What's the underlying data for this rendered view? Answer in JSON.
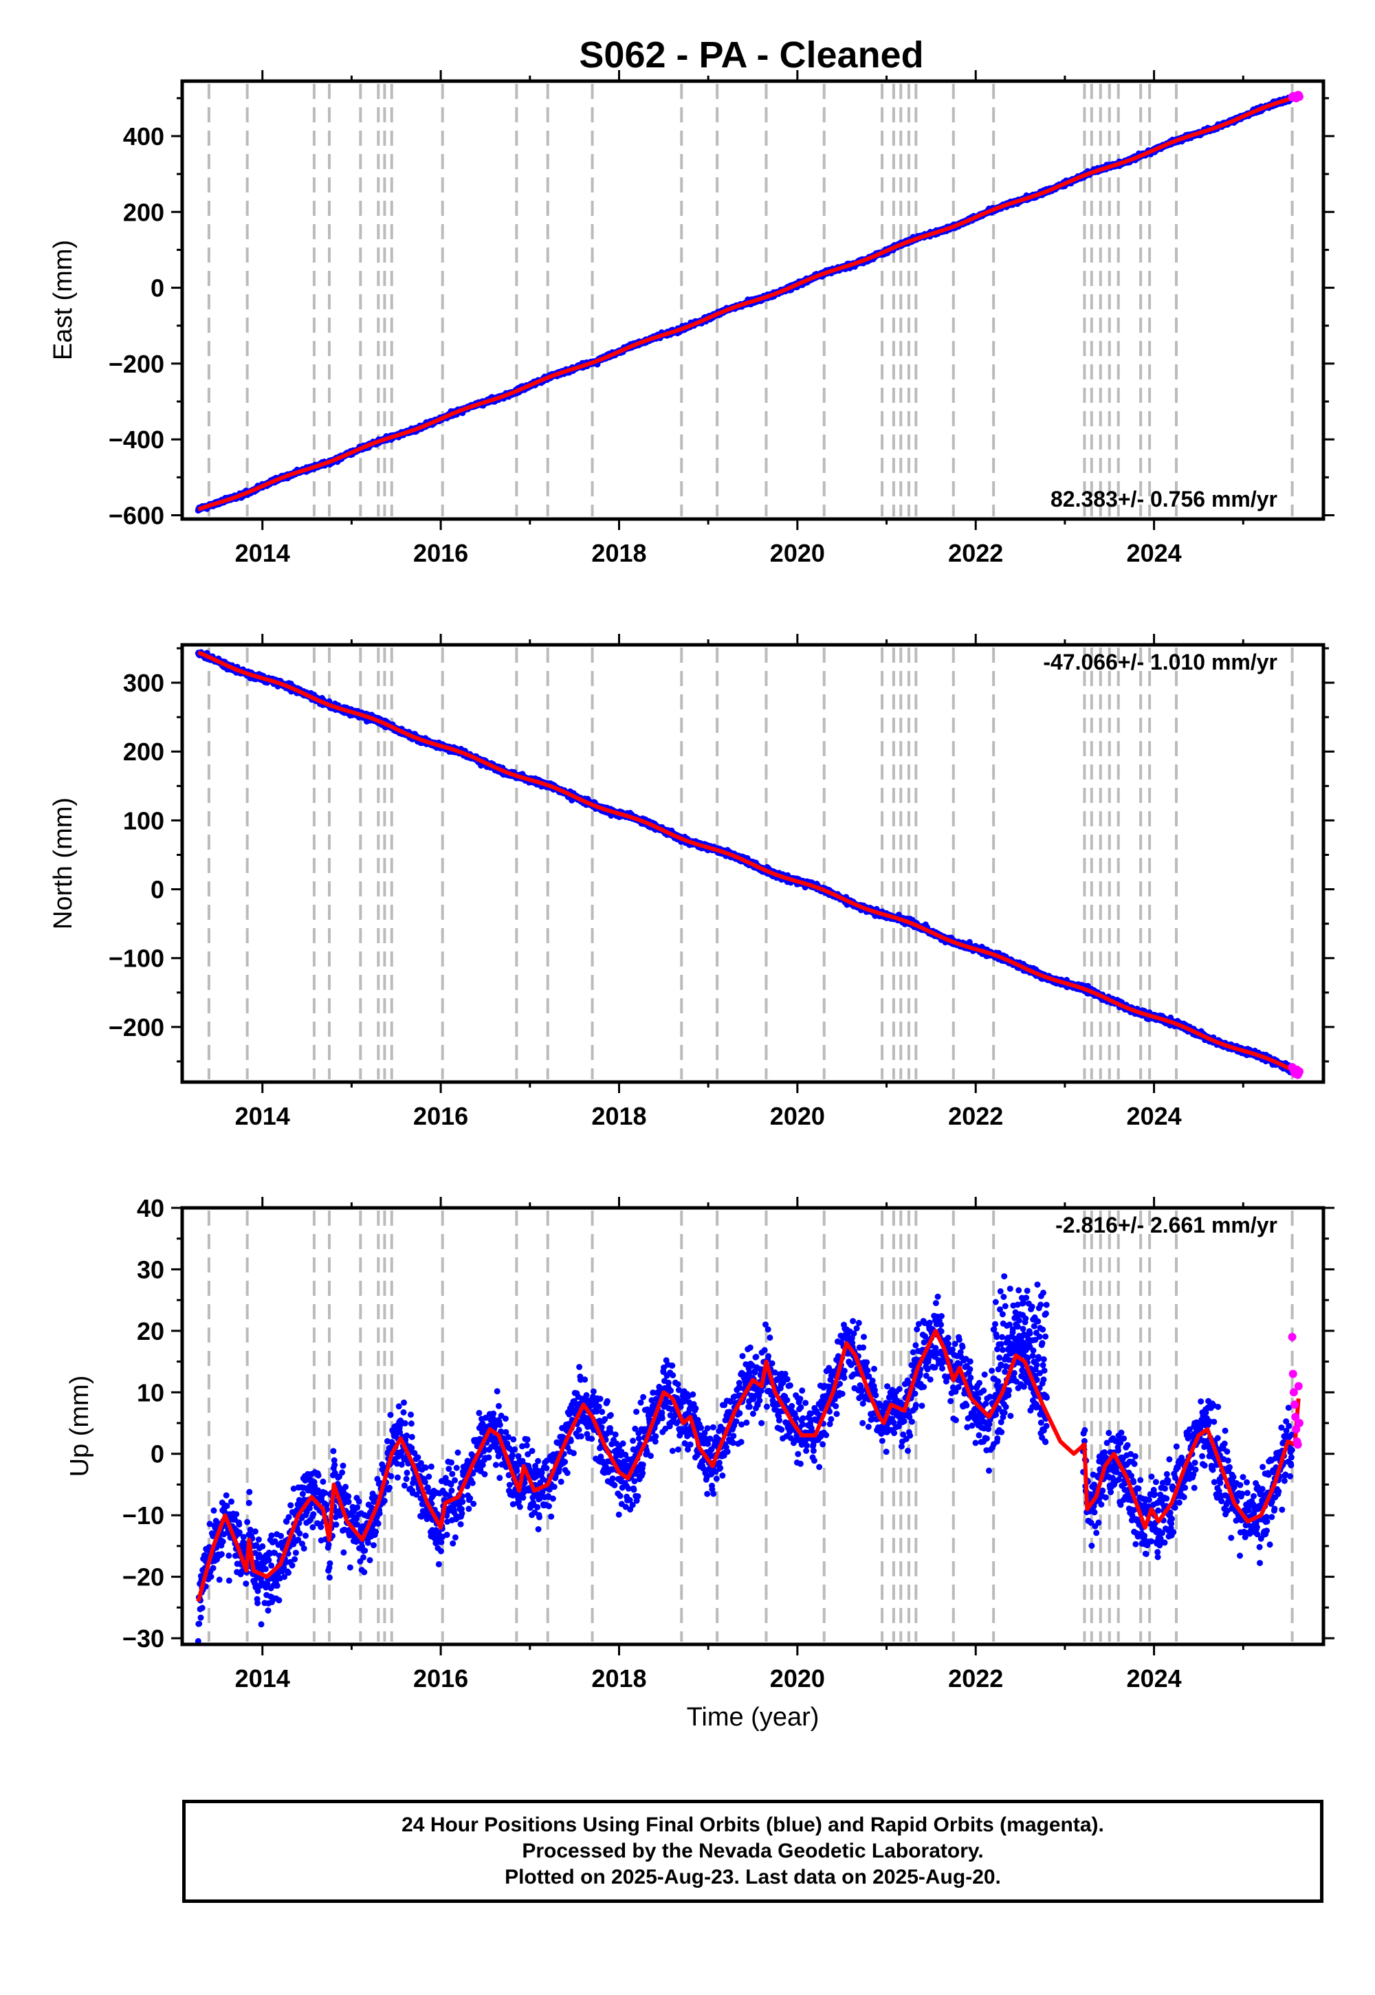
{
  "title": "S062  - PA - Cleaned",
  "footer": {
    "line1": "24 Hour Positions Using Final Orbits (blue) and Rapid Orbits (magenta).",
    "line2": "Processed by the Nevada Geodetic Laboratory.",
    "line3": "Plotted on 2025-Aug-23. Last data on 2025-Aug-20."
  },
  "colors": {
    "final_orbits": "#0000ff",
    "rapid_orbits": "#ff00ff",
    "model_fit": "#ff0000",
    "event_lines": "#bbbbbb"
  },
  "chart_data": [
    {
      "type": "scatter",
      "component": "East",
      "ylabel": "East (mm)",
      "xlabel": "",
      "xlim": [
        2013.1,
        2025.9
      ],
      "ylim": [
        -610,
        545
      ],
      "x_ticks": [
        2014,
        2016,
        2018,
        2020,
        2022,
        2024
      ],
      "y_ticks": [
        400,
        200,
        0,
        -200,
        -400,
        -600
      ],
      "y_minor_step": 100,
      "rate_label": "82.383+/- 0.756 mm/yr",
      "rate_position": "bottom-right",
      "trend": {
        "start": [
          2013.28,
          -587
        ],
        "end": [
          2025.62,
          507
        ],
        "rate_mm_per_yr": 82.383
      },
      "series": [
        {
          "name": "Final Orbits",
          "color": "#0000ff",
          "x_range": [
            2013.28,
            2025.55
          ],
          "scatter_mm": 4
        },
        {
          "name": "Rapid Orbits",
          "color": "#ff00ff",
          "x_range": [
            2025.55,
            2025.63
          ],
          "scatter_mm": 5
        },
        {
          "name": "Model",
          "color": "#ff0000"
        }
      ]
    },
    {
      "type": "scatter",
      "component": "North",
      "ylabel": "North (mm)",
      "xlabel": "",
      "xlim": [
        2013.1,
        2025.9
      ],
      "ylim": [
        -280,
        355
      ],
      "x_ticks": [
        2014,
        2016,
        2018,
        2020,
        2022,
        2024
      ],
      "y_ticks": [
        300,
        200,
        100,
        0,
        -100,
        -200
      ],
      "y_minor_step": 50,
      "rate_label": "-47.066+/- 1.010 mm/yr",
      "rate_position": "top-right",
      "trend": {
        "start": [
          2013.28,
          342
        ],
        "end": [
          2025.62,
          -265
        ],
        "rate_mm_per_yr": -47.066
      },
      "series": [
        {
          "name": "Final Orbits",
          "color": "#0000ff",
          "x_range": [
            2013.28,
            2025.55
          ],
          "scatter_mm": 3
        },
        {
          "name": "Rapid Orbits",
          "color": "#ff00ff",
          "x_range": [
            2025.55,
            2025.63
          ],
          "scatter_mm": 4
        },
        {
          "name": "Model",
          "color": "#ff0000"
        }
      ]
    },
    {
      "type": "scatter",
      "component": "Up",
      "ylabel": "Up (mm)",
      "xlabel": "Time (year)",
      "xlim": [
        2013.1,
        2025.9
      ],
      "ylim": [
        -31,
        40
      ],
      "x_ticks": [
        2014,
        2016,
        2018,
        2020,
        2022,
        2024
      ],
      "y_ticks": [
        40,
        30,
        20,
        10,
        0,
        -10,
        -20,
        -30
      ],
      "y_minor_step": 5,
      "rate_label": "-2.816+/- 2.661 mm/yr",
      "rate_position": "top-right",
      "model_points": [
        [
          2013.28,
          -24
        ],
        [
          2013.45,
          -15
        ],
        [
          2013.58,
          -10
        ],
        [
          2013.72,
          -15
        ],
        [
          2013.82,
          -19
        ],
        [
          2013.85,
          -14
        ],
        [
          2013.9,
          -19
        ],
        [
          2014.05,
          -20
        ],
        [
          2014.2,
          -18
        ],
        [
          2014.4,
          -10
        ],
        [
          2014.55,
          -7
        ],
        [
          2014.68,
          -9
        ],
        [
          2014.75,
          -14
        ],
        [
          2014.8,
          -5
        ],
        [
          2014.95,
          -11
        ],
        [
          2015.12,
          -14
        ],
        [
          2015.3,
          -8
        ],
        [
          2015.45,
          0
        ],
        [
          2015.55,
          2.5
        ],
        [
          2015.7,
          -2
        ],
        [
          2015.85,
          -8
        ],
        [
          2016.0,
          -12
        ],
        [
          2016.05,
          -8
        ],
        [
          2016.2,
          -7
        ],
        [
          2016.35,
          -2
        ],
        [
          2016.55,
          4
        ],
        [
          2016.65,
          3
        ],
        [
          2016.8,
          -3
        ],
        [
          2016.88,
          -6
        ],
        [
          2016.93,
          -2
        ],
        [
          2017.05,
          -6
        ],
        [
          2017.2,
          -5
        ],
        [
          2017.4,
          2
        ],
        [
          2017.6,
          8
        ],
        [
          2017.7,
          6
        ],
        [
          2017.85,
          1
        ],
        [
          2018.0,
          -3
        ],
        [
          2018.1,
          -4
        ],
        [
          2018.3,
          2
        ],
        [
          2018.5,
          10
        ],
        [
          2018.6,
          9
        ],
        [
          2018.72,
          5
        ],
        [
          2018.8,
          6
        ],
        [
          2018.9,
          1
        ],
        [
          2019.05,
          -2
        ],
        [
          2019.1,
          0
        ],
        [
          2019.3,
          7
        ],
        [
          2019.5,
          12
        ],
        [
          2019.6,
          11
        ],
        [
          2019.65,
          15
        ],
        [
          2019.75,
          10
        ],
        [
          2019.95,
          5
        ],
        [
          2020.05,
          3
        ],
        [
          2020.2,
          3
        ],
        [
          2020.4,
          10
        ],
        [
          2020.55,
          18
        ],
        [
          2020.65,
          16
        ],
        [
          2020.8,
          10
        ],
        [
          2020.92,
          6
        ],
        [
          2020.97,
          5
        ],
        [
          2021.05,
          8
        ],
        [
          2021.2,
          7
        ],
        [
          2021.35,
          14
        ],
        [
          2021.55,
          20
        ],
        [
          2021.65,
          17
        ],
        [
          2021.75,
          12
        ],
        [
          2021.82,
          14
        ],
        [
          2021.95,
          9
        ],
        [
          2022.15,
          6
        ],
        [
          2022.3,
          10
        ],
        [
          2022.45,
          16
        ],
        [
          2022.55,
          15
        ],
        [
          2022.75,
          8
        ],
        [
          2022.95,
          2
        ],
        [
          2023.1,
          0
        ],
        [
          2023.22,
          1.5
        ],
        [
          2023.25,
          -9
        ],
        [
          2023.35,
          -7
        ],
        [
          2023.45,
          -2
        ],
        [
          2023.55,
          0
        ],
        [
          2023.7,
          -4
        ],
        [
          2023.85,
          -10
        ],
        [
          2023.9,
          -12
        ],
        [
          2023.97,
          -9
        ],
        [
          2024.05,
          -11
        ],
        [
          2024.2,
          -8
        ],
        [
          2024.35,
          -2
        ],
        [
          2024.5,
          3
        ],
        [
          2024.6,
          4
        ],
        [
          2024.75,
          -2
        ],
        [
          2024.9,
          -8
        ],
        [
          2025.05,
          -11
        ],
        [
          2025.2,
          -10
        ],
        [
          2025.35,
          -5
        ],
        [
          2025.5,
          2
        ],
        [
          2025.58,
          1.5
        ],
        [
          2025.62,
          9
        ]
      ],
      "series": [
        {
          "name": "Final Orbits",
          "color": "#0000ff",
          "x_range": [
            2013.28,
            2025.55
          ],
          "scatter_mm": 4
        },
        {
          "name": "Rapid Orbits",
          "color": "#ff00ff",
          "x_range": [
            2025.55,
            2025.63
          ]
        },
        {
          "name": "Model",
          "color": "#ff0000"
        }
      ]
    }
  ],
  "event_lines": [
    2013.4,
    2013.83,
    2014.58,
    2014.75,
    2015.1,
    2015.3,
    2015.37,
    2015.45,
    2016.02,
    2016.85,
    2017.2,
    2017.7,
    2018.7,
    2019.1,
    2019.65,
    2020.3,
    2020.95,
    2021.08,
    2021.16,
    2021.25,
    2021.33,
    2021.75,
    2022.2,
    2023.22,
    2023.3,
    2023.4,
    2023.5,
    2023.6,
    2023.85,
    2023.95,
    2024.25,
    2025.55
  ]
}
